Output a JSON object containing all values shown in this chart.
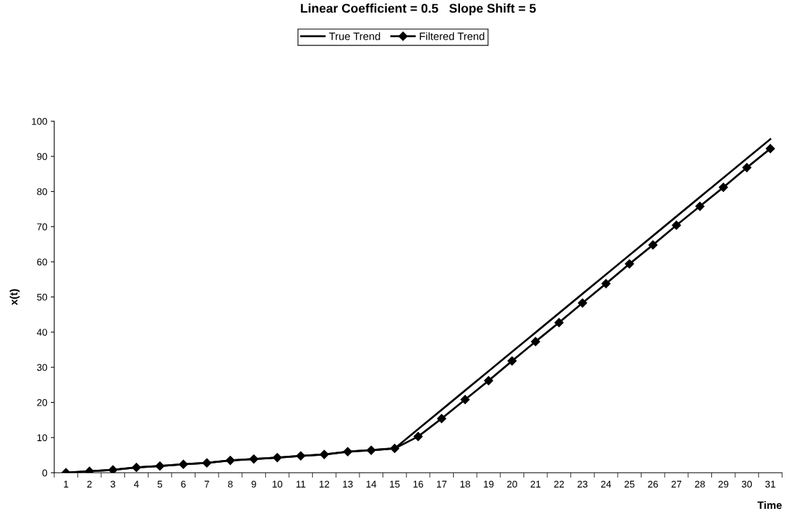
{
  "chart_data": {
    "type": "line",
    "title": "Linear Coefficient = 0.5   Slope Shift = 5",
    "xlabel": "Time",
    "ylabel": "x(t)",
    "categories": [
      "1",
      "2",
      "3",
      "4",
      "5",
      "6",
      "7",
      "8",
      "9",
      "10",
      "11",
      "12",
      "13",
      "14",
      "15",
      "16",
      "17",
      "18",
      "19",
      "20",
      "21",
      "22",
      "23",
      "24",
      "25",
      "26",
      "27",
      "28",
      "29",
      "30",
      "31"
    ],
    "series": [
      {
        "name": "True Trend",
        "color": "#000000",
        "marker": "none",
        "values": [
          0,
          0.4,
          0.8,
          1.5,
          1.9,
          2.4,
          2.8,
          3.5,
          3.9,
          4.3,
          4.8,
          5.2,
          6.0,
          6.4,
          6.9,
          12.4,
          17.9,
          23.4,
          28.9,
          34.4,
          39.9,
          45.4,
          50.9,
          56.4,
          61.9,
          67.4,
          72.9,
          78.4,
          83.9,
          89.4,
          94.9
        ]
      },
      {
        "name": "Filtered Trend",
        "color": "#000000",
        "marker": "diamond",
        "values": [
          0,
          0.4,
          0.8,
          1.5,
          1.9,
          2.4,
          2.8,
          3.5,
          3.9,
          4.3,
          4.8,
          5.2,
          6.0,
          6.4,
          6.9,
          10.3,
          15.4,
          20.8,
          26.2,
          31.8,
          37.3,
          42.7,
          48.3,
          53.8,
          59.4,
          64.8,
          70.4,
          75.8,
          81.2,
          86.8,
          92.2
        ]
      }
    ],
    "ylim": [
      0,
      100
    ],
    "yticks": [
      0,
      10,
      20,
      30,
      40,
      50,
      60,
      70,
      80,
      90,
      100
    ],
    "grid": false,
    "legend": "top",
    "line_style": "solid"
  }
}
